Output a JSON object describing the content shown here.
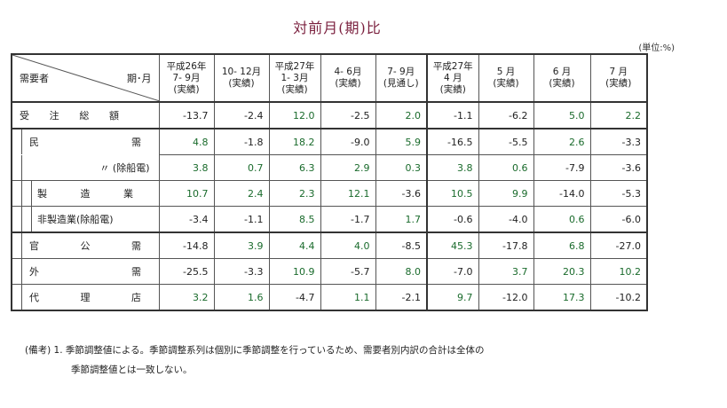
{
  "title": "対前月(期)比",
  "unit": "(単位:%)",
  "corner": {
    "left": "需要者",
    "right": "期･月"
  },
  "columns": [
    {
      "l1": "平成26年",
      "l2": "7- 9月",
      "l3": "(実績)"
    },
    {
      "l1": "",
      "l2": "10- 12月",
      "l3": "(実績)"
    },
    {
      "l1": "平成27年",
      "l2": "1- 3月",
      "l3": "(実績)"
    },
    {
      "l1": "",
      "l2": "4- 6月",
      "l3": "(実績)"
    },
    {
      "l1": "",
      "l2": "7- 9月",
      "l3": "(見通し)"
    },
    {
      "l1": "平成27年",
      "l2": "4 月",
      "l3": "(実績)"
    },
    {
      "l1": "",
      "l2": "5 月",
      "l3": "(実績)"
    },
    {
      "l1": "",
      "l2": "6 月",
      "l3": "(実績)"
    },
    {
      "l1": "",
      "l2": "7 月",
      "l3": "(実績)"
    }
  ],
  "rows": [
    {
      "chars": [
        "受",
        "注",
        "総",
        "額"
      ],
      "values": [
        "-13.7",
        "-2.4",
        "12.0",
        "-2.5",
        "2.0",
        "-1.1",
        "-6.2",
        "5.0",
        "2.2"
      ]
    },
    {
      "chars": [
        "民",
        "需"
      ],
      "values": [
        "4.8",
        "-1.8",
        "18.2",
        "-9.0",
        "5.9",
        "-16.5",
        "-5.5",
        "2.6",
        "-3.3"
      ]
    },
    {
      "label": "〃 (除船電)",
      "values": [
        "3.8",
        "0.7",
        "6.3",
        "2.9",
        "0.3",
        "3.8",
        "0.6",
        "-7.9",
        "-3.6"
      ]
    },
    {
      "chars": [
        "製",
        "造",
        "業"
      ],
      "values": [
        "10.7",
        "2.4",
        "2.3",
        "12.1",
        "-3.6",
        "10.5",
        "9.9",
        "-14.0",
        "-5.3"
      ]
    },
    {
      "label": "非製造業(除船電)",
      "values": [
        "-3.4",
        "-1.1",
        "8.5",
        "-1.7",
        "1.7",
        "-0.6",
        "-4.0",
        "0.6",
        "-6.0"
      ]
    },
    {
      "chars": [
        "官",
        "公",
        "需"
      ],
      "values": [
        "-14.8",
        "3.9",
        "4.4",
        "4.0",
        "-8.5",
        "45.3",
        "-17.8",
        "6.8",
        "-27.0"
      ]
    },
    {
      "chars": [
        "外",
        "需"
      ],
      "values": [
        "-25.5",
        "-3.3",
        "10.9",
        "-5.7",
        "8.0",
        "-7.0",
        "3.7",
        "20.3",
        "10.2"
      ]
    },
    {
      "chars": [
        "代",
        "理",
        "店"
      ],
      "values": [
        "3.2",
        "1.6",
        "-4.7",
        "1.1",
        "-2.1",
        "9.7",
        "-12.0",
        "17.3",
        "-10.2"
      ]
    }
  ],
  "notes": {
    "line1": "(備考) 1. 季節調整値による。季節調整系列は個別に季節調整を行っているため、需要者別内訳の合計は全体の",
    "line2": "季節調整値とは一致しない。"
  }
}
